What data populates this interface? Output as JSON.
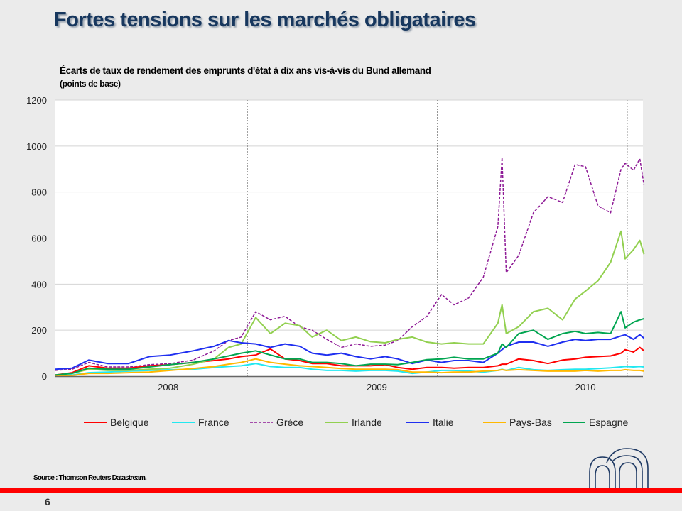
{
  "slide": {
    "title": "Fortes tensions sur les marchés obligataires",
    "source": "Source : Thomson Reuters Datastream.",
    "page_number": "6"
  },
  "chart_data": {
    "type": "line",
    "title": "Écarts de taux de rendement des emprunts d'état à dix ans vis-à-vis du Bund allemand",
    "subtitle": "(points de base)",
    "xlabel": "",
    "ylabel": "",
    "xlim": [
      2007.96,
      2010.775
    ],
    "ylim": [
      0,
      1200
    ],
    "yticks": [
      0,
      200,
      400,
      600,
      800,
      1000,
      1200
    ],
    "ytick_labels": [
      "0",
      "200",
      "400",
      "600",
      "800",
      "1000",
      "1200"
    ],
    "xtick_labels": [
      {
        "label": "2008",
        "at": 2008.5
      },
      {
        "label": "2009",
        "at": 2009.5
      },
      {
        "label": "2010",
        "at": 2010.5
      }
    ],
    "event_lines": [
      2008.88,
      2009.79,
      2010.7
    ],
    "grid": true,
    "legend_position": "bottom",
    "x": [
      2007.96,
      2008.04,
      2008.12,
      2008.21,
      2008.31,
      2008.41,
      2008.51,
      2008.62,
      2008.72,
      2008.79,
      2008.85,
      2008.92,
      2008.99,
      2009.06,
      2009.13,
      2009.19,
      2009.26,
      2009.33,
      2009.4,
      2009.47,
      2009.54,
      2009.6,
      2009.67,
      2009.74,
      2009.81,
      2009.87,
      2009.94,
      2010.01,
      2010.08,
      2010.1,
      2010.12,
      2010.18,
      2010.25,
      2010.32,
      2010.39,
      2010.45,
      2010.5,
      2010.56,
      2010.62,
      2010.67,
      2010.69,
      2010.73,
      2010.76,
      2010.78
    ],
    "series": [
      {
        "name": "Belgique",
        "color": "#ff0000",
        "dashed": false,
        "values": [
          5,
          15,
          45,
          35,
          35,
          45,
          50,
          60,
          68,
          75,
          85,
          92,
          118,
          75,
          68,
          55,
          55,
          45,
          45,
          45,
          50,
          38,
          30,
          38,
          38,
          35,
          38,
          38,
          45,
          52,
          52,
          75,
          68,
          55,
          70,
          75,
          82,
          85,
          88,
          100,
          115,
          105,
          125,
          110
        ]
      },
      {
        "name": "France",
        "color": "#22e8f0",
        "dashed": false,
        "values": [
          0,
          5,
          15,
          18,
          22,
          25,
          28,
          30,
          38,
          42,
          45,
          55,
          42,
          38,
          38,
          30,
          25,
          25,
          22,
          25,
          25,
          22,
          12,
          18,
          25,
          25,
          22,
          18,
          25,
          30,
          25,
          38,
          28,
          25,
          28,
          30,
          30,
          33,
          36,
          40,
          42,
          40,
          42,
          40
        ]
      },
      {
        "name": "Grèce",
        "color": "#8e1a96",
        "dashed": true,
        "values": [
          25,
          30,
          60,
          40,
          40,
          50,
          55,
          70,
          110,
          155,
          170,
          280,
          245,
          260,
          215,
          200,
          160,
          125,
          140,
          130,
          135,
          155,
          215,
          260,
          355,
          310,
          340,
          430,
          650,
          950,
          450,
          525,
          710,
          780,
          755,
          920,
          910,
          740,
          710,
          900,
          925,
          895,
          945,
          830
        ]
      },
      {
        "name": "Irlande",
        "color": "#92d050",
        "dashed": false,
        "values": [
          5,
          12,
          30,
          25,
          25,
          30,
          35,
          52,
          75,
          125,
          140,
          255,
          185,
          230,
          220,
          170,
          200,
          155,
          170,
          150,
          145,
          160,
          170,
          148,
          140,
          145,
          140,
          140,
          230,
          310,
          185,
          215,
          280,
          295,
          245,
          335,
          370,
          415,
          495,
          630,
          510,
          550,
          590,
          530
        ]
      },
      {
        "name": "Italie",
        "color": "#1f2ff0",
        "dashed": false,
        "values": [
          30,
          35,
          70,
          55,
          55,
          85,
          92,
          110,
          130,
          155,
          145,
          140,
          125,
          140,
          130,
          100,
          92,
          100,
          85,
          75,
          85,
          75,
          55,
          70,
          60,
          68,
          68,
          60,
          100,
          115,
          130,
          148,
          148,
          130,
          148,
          160,
          155,
          160,
          160,
          175,
          180,
          160,
          180,
          165
        ]
      },
      {
        "name": "Pays-Bas",
        "color": "#ffb800",
        "dashed": false,
        "values": [
          0,
          3,
          12,
          12,
          15,
          18,
          25,
          33,
          42,
          52,
          60,
          75,
          60,
          52,
          45,
          42,
          38,
          33,
          30,
          30,
          30,
          28,
          18,
          18,
          15,
          18,
          18,
          22,
          25,
          28,
          25,
          28,
          25,
          22,
          22,
          22,
          25,
          22,
          25,
          25,
          28,
          25,
          25,
          22
        ]
      },
      {
        "name": "Espagne",
        "color": "#00a550",
        "dashed": false,
        "values": [
          5,
          12,
          35,
          30,
          30,
          40,
          50,
          60,
          75,
          88,
          100,
          110,
          92,
          75,
          75,
          60,
          60,
          55,
          45,
          52,
          52,
          50,
          60,
          72,
          75,
          82,
          75,
          75,
          100,
          140,
          125,
          185,
          200,
          160,
          185,
          195,
          185,
          190,
          185,
          280,
          210,
          235,
          245,
          250
        ]
      }
    ]
  }
}
